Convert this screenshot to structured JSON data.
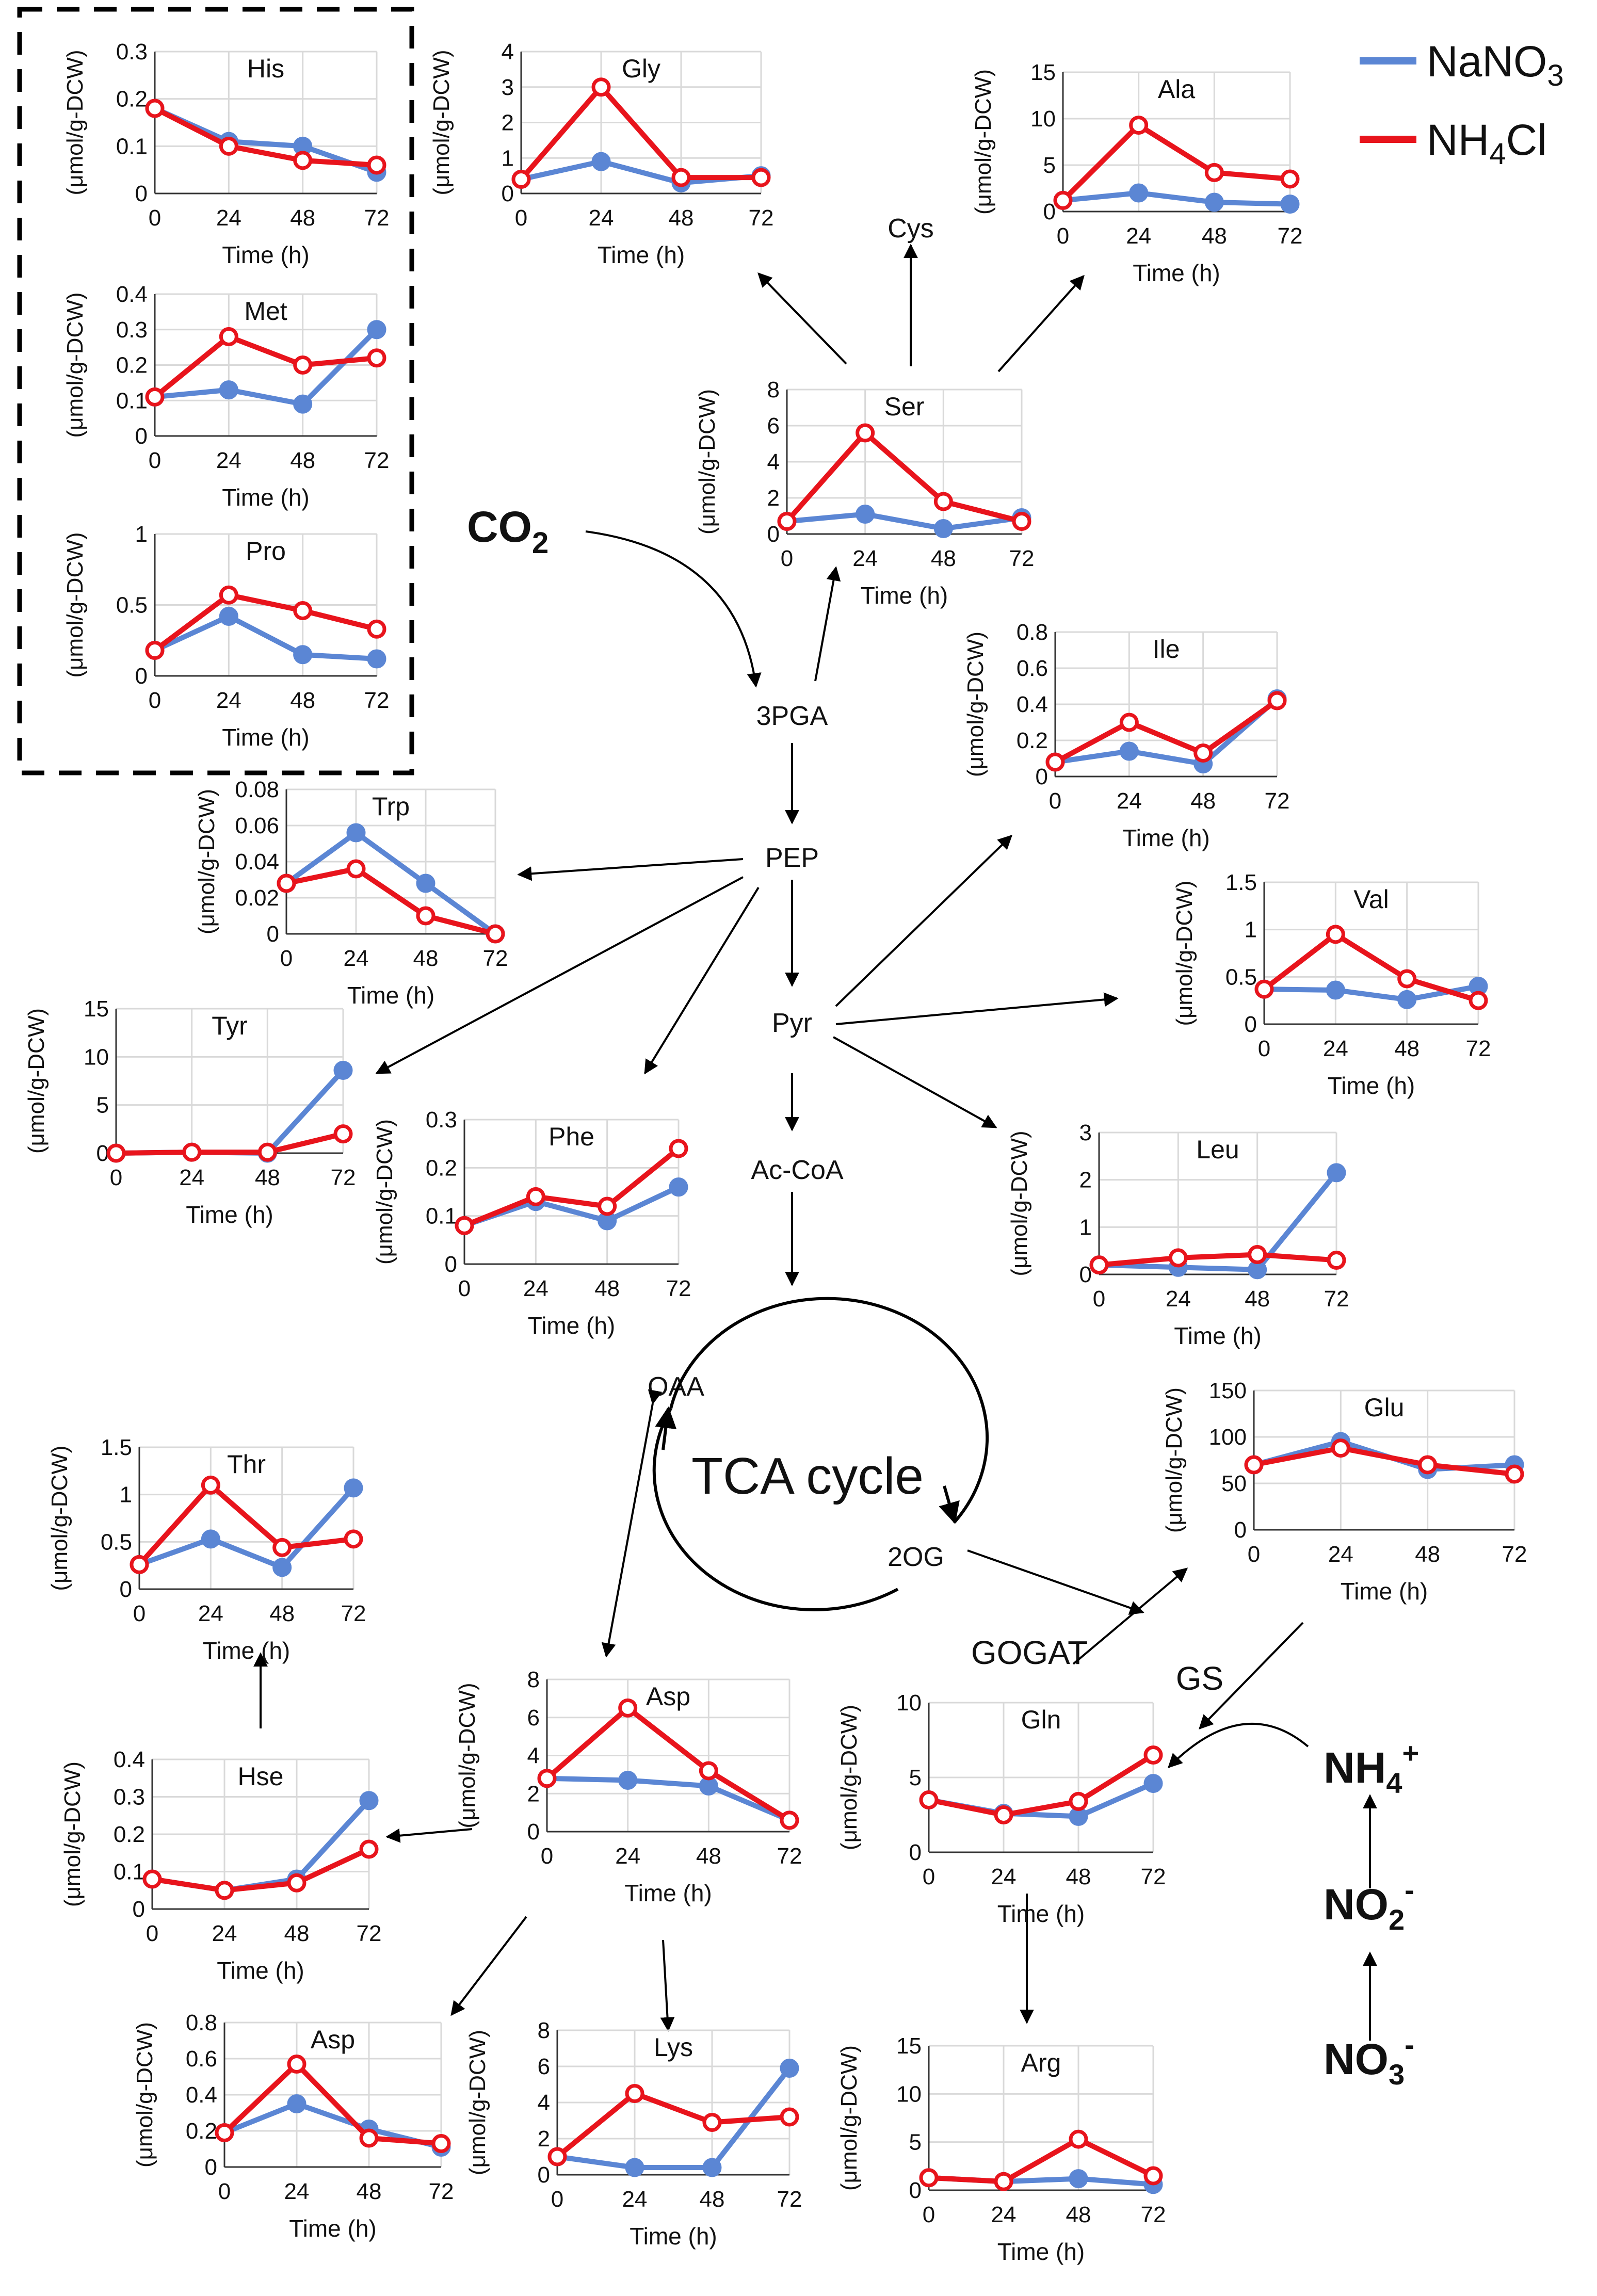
{
  "legend": {
    "items": [
      {
        "name": "NaNO3",
        "label": "NaNO",
        "sub": "3",
        "color": "#5b86d4"
      },
      {
        "name": "NH4Cl",
        "label": "NH",
        "sub": "4",
        "tail": "Cl",
        "color": "#e8141c"
      }
    ]
  },
  "pathway": {
    "co2": {
      "main": "CO",
      "sub": "2"
    },
    "nh4": {
      "main": "NH",
      "sub": "4",
      "sup": "+"
    },
    "no2": {
      "main": "NO",
      "sub": "2",
      "sup": "-"
    },
    "no3": {
      "main": "NO",
      "sub": "3",
      "sup": "-"
    },
    "pga": "3PGA",
    "pep": "PEP",
    "pyr": "Pyr",
    "accoa": "Ac-CoA",
    "oaa": "OAA",
    "og": "2OG",
    "tca": "TCA cycle",
    "cys": "Cys",
    "gogat": "GOGAT",
    "gs": "GS"
  },
  "chart_data": [
    {
      "type": "line",
      "title": "His",
      "x": [
        0,
        24,
        48,
        72
      ],
      "xlabel": "Time (h)",
      "ylabel": "(μmol/g-DCW)",
      "ylim": [
        0,
        0.3
      ],
      "yticks": [
        "0",
        "0.1",
        "0.2",
        "0.3"
      ],
      "series": [
        {
          "name": "NaNO3",
          "values": [
            0.18,
            0.11,
            0.1,
            0.045
          ]
        },
        {
          "name": "NH4Cl",
          "values": [
            0.18,
            0.1,
            0.07,
            0.06
          ]
        }
      ]
    },
    {
      "type": "line",
      "title": "Met",
      "x": [
        0,
        24,
        48,
        72
      ],
      "xlabel": "Time (h)",
      "ylabel": "(μmol/g-DCW)",
      "ylim": [
        0,
        0.4
      ],
      "yticks": [
        "0",
        "0.1",
        "0.2",
        "0.3",
        "0.4"
      ],
      "series": [
        {
          "name": "NaNO3",
          "values": [
            0.11,
            0.13,
            0.09,
            0.3
          ]
        },
        {
          "name": "NH4Cl",
          "values": [
            0.11,
            0.28,
            0.2,
            0.22
          ]
        }
      ]
    },
    {
      "type": "line",
      "title": "Pro",
      "x": [
        0,
        24,
        48,
        72
      ],
      "xlabel": "Time (h)",
      "ylabel": "(μmol/g-DCW)",
      "ylim": [
        0,
        1
      ],
      "yticks": [
        "0",
        "0.5",
        "1"
      ],
      "series": [
        {
          "name": "NaNO3",
          "values": [
            0.18,
            0.42,
            0.15,
            0.12
          ]
        },
        {
          "name": "NH4Cl",
          "values": [
            0.18,
            0.57,
            0.46,
            0.33
          ]
        }
      ]
    },
    {
      "type": "line",
      "title": "Gly",
      "x": [
        0,
        24,
        48,
        72
      ],
      "xlabel": "Time (h)",
      "ylabel": "(μmol/g-DCW)",
      "ylim": [
        0,
        4
      ],
      "yticks": [
        "0",
        "1",
        "2",
        "3",
        "4"
      ],
      "series": [
        {
          "name": "NaNO3",
          "values": [
            0.4,
            0.9,
            0.3,
            0.5
          ]
        },
        {
          "name": "NH4Cl",
          "values": [
            0.4,
            3.0,
            0.45,
            0.45
          ]
        }
      ]
    },
    {
      "type": "line",
      "title": "Ala",
      "x": [
        0,
        24,
        48,
        72
      ],
      "xlabel": "Time (h)",
      "ylabel": "(μmol/g-DCW)",
      "ylim": [
        0,
        15
      ],
      "yticks": [
        "0",
        "5",
        "10",
        "15"
      ],
      "series": [
        {
          "name": "NaNO3",
          "values": [
            1.2,
            2.0,
            1.0,
            0.8
          ]
        },
        {
          "name": "NH4Cl",
          "values": [
            1.2,
            9.3,
            4.2,
            3.5
          ]
        }
      ]
    },
    {
      "type": "line",
      "title": "Ser",
      "x": [
        0,
        24,
        48,
        72
      ],
      "xlabel": "Time (h)",
      "ylabel": "(μmol/g-DCW)",
      "ylim": [
        0,
        8
      ],
      "yticks": [
        "0",
        "2",
        "4",
        "6",
        "8"
      ],
      "series": [
        {
          "name": "NaNO3",
          "values": [
            0.7,
            1.1,
            0.3,
            0.9
          ]
        },
        {
          "name": "NH4Cl",
          "values": [
            0.7,
            5.6,
            1.8,
            0.7
          ]
        }
      ]
    },
    {
      "type": "line",
      "title": "Ile",
      "x": [
        0,
        24,
        48,
        72
      ],
      "xlabel": "Time (h)",
      "ylabel": "(μmol/g-DCW)",
      "ylim": [
        0,
        0.8
      ],
      "yticks": [
        "0",
        "0.2",
        "0.4",
        "0.6",
        "0.8"
      ],
      "series": [
        {
          "name": "NaNO3",
          "values": [
            0.08,
            0.14,
            0.07,
            0.43
          ]
        },
        {
          "name": "NH4Cl",
          "values": [
            0.08,
            0.3,
            0.13,
            0.42
          ]
        }
      ]
    },
    {
      "type": "line",
      "title": "Trp",
      "x": [
        0,
        24,
        48,
        72
      ],
      "xlabel": "Time (h)",
      "ylabel": "(μmol/g-DCW)",
      "ylim": [
        0,
        0.08
      ],
      "yticks": [
        "0",
        "0.02",
        "0.04",
        "0.06",
        "0.08"
      ],
      "series": [
        {
          "name": "NaNO3",
          "values": [
            0.028,
            0.056,
            0.028,
            0.0
          ]
        },
        {
          "name": "NH4Cl",
          "values": [
            0.028,
            0.036,
            0.01,
            0.0
          ]
        }
      ]
    },
    {
      "type": "line",
      "title": "Val",
      "x": [
        0,
        24,
        48,
        72
      ],
      "xlabel": "Time (h)",
      "ylabel": "(μmol/g-DCW)",
      "ylim": [
        0,
        1.5
      ],
      "yticks": [
        "0",
        "0.5",
        "1",
        "1.5"
      ],
      "series": [
        {
          "name": "NaNO3",
          "values": [
            0.37,
            0.36,
            0.26,
            0.4
          ]
        },
        {
          "name": "NH4Cl",
          "values": [
            0.37,
            0.95,
            0.48,
            0.25
          ]
        }
      ]
    },
    {
      "type": "line",
      "title": "Tyr",
      "x": [
        0,
        24,
        48,
        72
      ],
      "xlabel": "Time (h)",
      "ylabel": "(μmol/g-DCW)",
      "ylim": [
        0,
        15
      ],
      "yticks": [
        "0",
        "5",
        "10",
        "15"
      ],
      "series": [
        {
          "name": "NaNO3",
          "values": [
            0.0,
            0.1,
            0.0,
            8.6
          ]
        },
        {
          "name": "NH4Cl",
          "values": [
            0.0,
            0.1,
            0.1,
            2.0
          ]
        }
      ]
    },
    {
      "type": "line",
      "title": "Phe",
      "x": [
        0,
        24,
        48,
        72
      ],
      "xlabel": "Time (h)",
      "ylabel": "(μmol/g-DCW)",
      "ylim": [
        0,
        0.3
      ],
      "yticks": [
        "0",
        "0.1",
        "0.2",
        "0.3"
      ],
      "series": [
        {
          "name": "NaNO3",
          "values": [
            0.08,
            0.13,
            0.09,
            0.16
          ]
        },
        {
          "name": "NH4Cl",
          "values": [
            0.08,
            0.14,
            0.12,
            0.24
          ]
        }
      ]
    },
    {
      "type": "line",
      "title": "Leu",
      "x": [
        0,
        24,
        48,
        72
      ],
      "xlabel": "Time (h)",
      "ylabel": "(μmol/g-DCW)",
      "ylim": [
        0,
        3
      ],
      "yticks": [
        "0",
        "1",
        "2",
        "3"
      ],
      "series": [
        {
          "name": "NaNO3",
          "values": [
            0.2,
            0.15,
            0.1,
            2.15
          ]
        },
        {
          "name": "NH4Cl",
          "values": [
            0.2,
            0.35,
            0.42,
            0.3
          ]
        }
      ]
    },
    {
      "type": "line",
      "title": "Glu",
      "x": [
        0,
        24,
        48,
        72
      ],
      "xlabel": "Time (h)",
      "ylabel": "(μmol/g-DCW)",
      "ylim": [
        0,
        150
      ],
      "yticks": [
        "0",
        "50",
        "100",
        "150"
      ],
      "series": [
        {
          "name": "NaNO3",
          "values": [
            70,
            95,
            65,
            70
          ]
        },
        {
          "name": "NH4Cl",
          "values": [
            70,
            88,
            70,
            60
          ]
        }
      ]
    },
    {
      "type": "line",
      "title": "Thr",
      "x": [
        0,
        24,
        48,
        72
      ],
      "xlabel": "Time (h)",
      "ylabel": "(μmol/g-DCW)",
      "ylim": [
        0,
        1.5
      ],
      "yticks": [
        "0",
        "0.5",
        "1",
        "1.5"
      ],
      "series": [
        {
          "name": "NaNO3",
          "values": [
            0.26,
            0.53,
            0.23,
            1.07
          ]
        },
        {
          "name": "NH4Cl",
          "values": [
            0.26,
            1.1,
            0.44,
            0.53
          ]
        }
      ]
    },
    {
      "type": "line",
      "title": "Asp",
      "x": [
        0,
        24,
        48,
        72
      ],
      "xlabel": "Time (h)",
      "ylabel": "(μmol/g-DCW)",
      "ylim": [
        0,
        8
      ],
      "yticks": [
        "0",
        "2",
        "4",
        "6",
        "8"
      ],
      "series": [
        {
          "name": "NaNO3",
          "values": [
            2.8,
            2.7,
            2.4,
            0.6
          ]
        },
        {
          "name": "NH4Cl",
          "values": [
            2.8,
            6.5,
            3.2,
            0.6
          ]
        }
      ]
    },
    {
      "type": "line",
      "title": "Gln",
      "x": [
        0,
        24,
        48,
        72
      ],
      "xlabel": "Time (h)",
      "ylabel": "(μmol/g-DCW)",
      "ylim": [
        0,
        10
      ],
      "yticks": [
        "0",
        "5",
        "10"
      ],
      "series": [
        {
          "name": "NaNO3",
          "values": [
            3.5,
            2.6,
            2.4,
            4.6
          ]
        },
        {
          "name": "NH4Cl",
          "values": [
            3.5,
            2.5,
            3.4,
            6.5
          ]
        }
      ]
    },
    {
      "type": "line",
      "title": "Hse",
      "x": [
        0,
        24,
        48,
        72
      ],
      "xlabel": "Time (h)",
      "ylabel": "(μmol/g-DCW)",
      "ylim": [
        0,
        0.4
      ],
      "yticks": [
        "0",
        "0.1",
        "0.2",
        "0.3",
        "0.4"
      ],
      "series": [
        {
          "name": "NaNO3",
          "values": [
            0.08,
            0.05,
            0.08,
            0.29
          ]
        },
        {
          "name": "NH4Cl",
          "values": [
            0.08,
            0.05,
            0.07,
            0.16
          ]
        }
      ]
    },
    {
      "type": "line",
      "title": "Asp",
      "x": [
        0,
        24,
        48,
        72
      ],
      "xlabel": "Time (h)",
      "ylabel": "(μmol/g-DCW)",
      "ylim": [
        0,
        0.8
      ],
      "yticks": [
        "0",
        "0.2",
        "0.4",
        "0.6",
        "0.8"
      ],
      "series": [
        {
          "name": "NaNO3",
          "values": [
            0.19,
            0.35,
            0.21,
            0.11
          ]
        },
        {
          "name": "NH4Cl",
          "values": [
            0.19,
            0.57,
            0.16,
            0.13
          ]
        }
      ]
    },
    {
      "type": "line",
      "title": "Lys",
      "x": [
        0,
        24,
        48,
        72
      ],
      "xlabel": "Time (h)",
      "ylabel": "(μmol/g-DCW)",
      "ylim": [
        0,
        8
      ],
      "yticks": [
        "0",
        "2",
        "4",
        "6",
        "8"
      ],
      "series": [
        {
          "name": "NaNO3",
          "values": [
            1.0,
            0.4,
            0.4,
            5.9
          ]
        },
        {
          "name": "NH4Cl",
          "values": [
            1.0,
            4.5,
            2.9,
            3.2
          ]
        }
      ]
    },
    {
      "type": "line",
      "title": "Arg",
      "x": [
        0,
        24,
        48,
        72
      ],
      "xlabel": "Time (h)",
      "ylabel": "(μmol/g-DCW)",
      "ylim": [
        0,
        15
      ],
      "yticks": [
        "0",
        "5",
        "10",
        "15"
      ],
      "series": [
        {
          "name": "NaNO3",
          "values": [
            1.3,
            0.9,
            1.2,
            0.6
          ]
        },
        {
          "name": "NH4Cl",
          "values": [
            1.3,
            0.9,
            5.3,
            1.5
          ]
        }
      ]
    }
  ]
}
